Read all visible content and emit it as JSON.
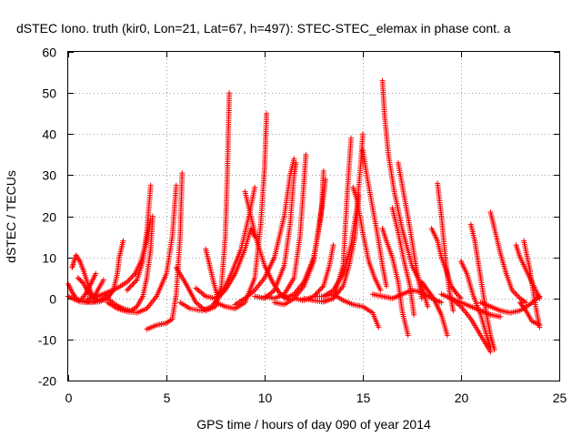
{
  "chart_data": {
    "type": "scatter",
    "title": "dSTEC Iono. truth (kir0, Lon=21, Lat=67, h=497): STEC-STEC_elemax in phase cont. a",
    "xlabel": "GPS time / hours of day 090 of year 2014",
    "ylabel": "dSTEC  / TECUs",
    "xlim": [
      0,
      25
    ],
    "ylim": [
      -20,
      60
    ],
    "xticks": [
      0,
      5,
      10,
      15,
      20,
      25
    ],
    "yticks": [
      -20,
      -10,
      0,
      10,
      20,
      30,
      40,
      50,
      60
    ],
    "grid": true,
    "marker": "plus",
    "color": "#ff0000",
    "series": [
      {
        "x": [
          0.0,
          0.2,
          0.4,
          0.6,
          0.8,
          1.0,
          1.2,
          1.4
        ],
        "y": [
          3.5,
          1.5,
          0.0,
          -0.5,
          0.5,
          2.0,
          4.0,
          6.0
        ]
      },
      {
        "x": [
          0.2,
          0.3,
          0.4,
          0.6,
          0.8,
          1.0,
          1.2,
          1.5
        ],
        "y": [
          7.5,
          9.0,
          10.5,
          9.0,
          6.5,
          3.5,
          1.0,
          -0.5
        ]
      },
      {
        "x": [
          0.0,
          0.3,
          0.6,
          0.9,
          1.2,
          1.5,
          1.8,
          2.0
        ],
        "y": [
          0.5,
          -0.2,
          -0.8,
          -1.0,
          -0.8,
          -0.5,
          0.0,
          1.0
        ]
      },
      {
        "x": [
          0.8,
          1.2,
          1.6,
          2.0,
          2.3,
          2.5,
          2.6,
          2.8
        ],
        "y": [
          -0.5,
          -1.0,
          -0.8,
          0.0,
          2.0,
          6.0,
          10.0,
          14.0
        ]
      },
      {
        "x": [
          0.5,
          0.8,
          1.0,
          1.3,
          1.5,
          1.8
        ],
        "y": [
          5.0,
          3.5,
          1.5,
          0.0,
          2.0,
          4.5
        ]
      },
      {
        "x": [
          1.0,
          1.5,
          2.0,
          2.5,
          3.0,
          3.4,
          3.7,
          4.0,
          4.2
        ],
        "y": [
          0.0,
          0.5,
          1.5,
          2.5,
          4.0,
          6.0,
          9.0,
          14.0,
          19.0
        ]
      },
      {
        "x": [
          2.0,
          2.4,
          2.8,
          3.2,
          3.5,
          3.8,
          4.0,
          4.2,
          4.3
        ],
        "y": [
          0.0,
          -1.5,
          -2.5,
          -3.0,
          -2.0,
          0.5,
          5.0,
          12.0,
          20.0
        ]
      },
      {
        "x": [
          2.0,
          2.5,
          3.0,
          3.5,
          4.0,
          4.5,
          5.0,
          5.3,
          5.5
        ],
        "y": [
          -1.0,
          -2.5,
          -3.2,
          -3.5,
          -2.5,
          0.5,
          6.0,
          15.0,
          27.5
        ]
      },
      {
        "x": [
          3.0,
          3.5,
          3.8,
          4.0,
          4.2
        ],
        "y": [
          2.0,
          4.5,
          9.0,
          16.0,
          27.5
        ]
      },
      {
        "x": [
          4.0,
          4.5,
          5.0,
          5.3,
          5.5,
          5.7,
          5.8
        ],
        "y": [
          -7.5,
          -6.5,
          -6.0,
          -5.0,
          1.0,
          15.0,
          30.5
        ]
      },
      {
        "x": [
          5.5,
          6.0,
          6.5,
          7.0,
          7.5,
          7.8,
          8.0,
          8.1,
          8.2
        ],
        "y": [
          7.5,
          3.5,
          -1.0,
          -3.0,
          -2.0,
          3.0,
          15.0,
          30.0,
          50.0
        ]
      },
      {
        "x": [
          5.7,
          6.2,
          6.8,
          7.3,
          7.8,
          8.3,
          8.8,
          9.2,
          9.5
        ],
        "y": [
          -1.0,
          -2.5,
          -3.0,
          -2.0,
          1.0,
          6.0,
          12.0,
          20.0,
          27.0
        ]
      },
      {
        "x": [
          6.5,
          7.0,
          7.5,
          8.0,
          8.5,
          9.0,
          9.3,
          9.5
        ],
        "y": [
          2.5,
          0.5,
          0.0,
          2.0,
          6.0,
          12.0,
          17.0,
          15.0
        ]
      },
      {
        "x": [
          7.0,
          7.2,
          7.4,
          7.6
        ],
        "y": [
          12.0,
          8.0,
          4.0,
          0.5
        ]
      },
      {
        "x": [
          7.5,
          8.0,
          8.5,
          9.0,
          9.5,
          9.8,
          10.0,
          10.1
        ],
        "y": [
          -1.0,
          -2.0,
          -2.5,
          -1.0,
          5.0,
          18.0,
          32.0,
          45.0
        ]
      },
      {
        "x": [
          8.5,
          9.0,
          9.5,
          10.0,
          10.5,
          11.0,
          11.3,
          11.5
        ],
        "y": [
          -1.5,
          0.0,
          2.0,
          5.0,
          10.0,
          20.0,
          30.0,
          34.0
        ]
      },
      {
        "x": [
          9.0,
          9.3,
          9.6,
          10.0,
          10.4,
          10.8,
          11.2
        ],
        "y": [
          26.0,
          20.0,
          14.0,
          8.0,
          4.0,
          1.0,
          0.0
        ]
      },
      {
        "x": [
          9.5,
          10.0,
          10.5,
          11.0,
          11.3,
          11.5,
          11.6
        ],
        "y": [
          0.5,
          0.0,
          2.0,
          8.0,
          18.0,
          30.0,
          33.0
        ]
      },
      {
        "x": [
          10.0,
          10.5,
          11.0,
          11.5,
          11.8,
          12.0,
          12.1
        ],
        "y": [
          0.5,
          0.0,
          1.0,
          5.0,
          15.0,
          28.0,
          35.0
        ]
      },
      {
        "x": [
          10.5,
          11.0,
          11.5,
          12.0,
          12.5,
          12.9,
          13.0
        ],
        "y": [
          -1.0,
          -1.5,
          0.0,
          3.0,
          9.0,
          22.0,
          31.0
        ]
      },
      {
        "x": [
          11.0,
          11.5,
          12.0,
          12.5,
          12.8,
          13.0,
          13.1
        ],
        "y": [
          0.0,
          1.0,
          4.0,
          10.0,
          18.0,
          25.0,
          29.0
        ]
      },
      {
        "x": [
          11.5,
          12.0,
          12.5,
          13.0,
          13.3,
          13.5
        ],
        "y": [
          0.0,
          -0.5,
          0.5,
          3.0,
          8.0,
          13.0
        ]
      },
      {
        "x": [
          12.0,
          12.5,
          13.0,
          13.5,
          14.0,
          14.3,
          14.6,
          14.8
        ],
        "y": [
          0.0,
          -0.5,
          -0.8,
          0.0,
          3.0,
          8.0,
          15.0,
          25.0
        ]
      },
      {
        "x": [
          12.5,
          13.0,
          13.5,
          14.0,
          14.4,
          14.7,
          14.9,
          15.0
        ],
        "y": [
          0.5,
          0.5,
          2.0,
          6.0,
          13.0,
          22.0,
          33.0,
          40.0
        ]
      },
      {
        "x": [
          12.5,
          13.0,
          13.5,
          14.0,
          14.2,
          14.4
        ],
        "y": [
          -0.5,
          -0.8,
          0.0,
          8.0,
          25.0,
          39.0
        ]
      },
      {
        "x": [
          12.5,
          13.0,
          13.5,
          14.0,
          14.5,
          15.0,
          15.5,
          15.8
        ],
        "y": [
          0.5,
          0.5,
          1.0,
          -0.5,
          -1.5,
          -2.0,
          -3.5,
          -7.0
        ]
      },
      {
        "x": [
          14.5,
          14.7,
          15.0,
          15.3,
          15.6,
          15.9
        ],
        "y": [
          27.0,
          24.0,
          16.0,
          9.0,
          5.0,
          2.0
        ]
      },
      {
        "x": [
          15.0,
          15.2,
          15.5,
          15.8,
          16.0,
          16.2
        ],
        "y": [
          36.0,
          30.0,
          22.0,
          14.0,
          8.0,
          3.0
        ]
      },
      {
        "x": [
          16.0,
          16.1,
          16.3,
          16.6,
          17.0,
          17.5,
          18.0,
          18.3
        ],
        "y": [
          53.0,
          45.0,
          35.0,
          26.0,
          17.0,
          8.0,
          3.0,
          -2.0
        ]
      },
      {
        "x": [
          16.0,
          16.2,
          16.5,
          16.8,
          17.0,
          17.3
        ],
        "y": [
          17.0,
          14.0,
          10.0,
          4.0,
          -3.0,
          -9.0
        ]
      },
      {
        "x": [
          16.5,
          16.8,
          17.1,
          17.4,
          17.6
        ],
        "y": [
          22.0,
          16.0,
          9.0,
          3.0,
          -4.0
        ]
      },
      {
        "x": [
          16.8,
          17.1,
          17.4,
          17.7,
          18.0
        ],
        "y": [
          33.0,
          25.0,
          17.0,
          8.0,
          0.0
        ]
      },
      {
        "x": [
          15.5,
          16.0,
          16.5,
          17.0,
          17.5,
          18.0,
          18.5,
          19.0
        ],
        "y": [
          1.0,
          0.5,
          0.0,
          1.0,
          2.0,
          1.5,
          0.0,
          -1.0
        ]
      },
      {
        "x": [
          18.5,
          18.8,
          19.0,
          19.3,
          19.5,
          19.8,
          20.0
        ],
        "y": [
          17.0,
          14.0,
          10.0,
          6.0,
          3.0,
          1.0,
          0.0
        ]
      },
      {
        "x": [
          18.0,
          18.3,
          18.6,
          19.0,
          19.3
        ],
        "y": [
          4.0,
          2.0,
          0.0,
          -4.0,
          -9.0
        ]
      },
      {
        "x": [
          18.8,
          19.0,
          19.2,
          19.4,
          19.6
        ],
        "y": [
          28.0,
          20.0,
          10.0,
          2.0,
          -3.0
        ]
      },
      {
        "x": [
          19.0,
          19.5,
          20.0,
          20.5,
          21.0,
          21.5
        ],
        "y": [
          1.0,
          0.0,
          -2.0,
          -5.0,
          -9.0,
          -13.0
        ]
      },
      {
        "x": [
          19.5,
          20.0,
          20.5,
          21.0,
          21.5,
          22.0
        ],
        "y": [
          0.0,
          -1.0,
          -2.0,
          -3.0,
          -4.0,
          -4.5
        ]
      },
      {
        "x": [
          20.0,
          20.3,
          20.6,
          21.0,
          21.3,
          21.5
        ],
        "y": [
          9.0,
          6.0,
          1.0,
          -4.0,
          -9.0,
          -12.0
        ]
      },
      {
        "x": [
          20.5,
          20.7,
          20.9,
          21.1,
          21.3,
          21.5,
          21.7
        ],
        "y": [
          18.0,
          14.0,
          8.0,
          2.0,
          -4.0,
          -9.0,
          -12.5
        ]
      },
      {
        "x": [
          21.5,
          21.7,
          22.0,
          22.3,
          22.6,
          23.0,
          23.3
        ],
        "y": [
          21.0,
          17.0,
          11.0,
          6.0,
          2.0,
          0.0,
          -1.0
        ]
      },
      {
        "x": [
          21.0,
          21.5,
          22.0,
          22.5,
          23.0,
          23.5,
          24.0
        ],
        "y": [
          -1.0,
          -2.0,
          -3.0,
          -3.5,
          -3.0,
          -1.5,
          0.5
        ]
      },
      {
        "x": [
          22.8,
          23.0,
          23.3,
          23.6,
          23.9,
          24.0
        ],
        "y": [
          13.0,
          10.0,
          7.0,
          4.0,
          1.0,
          0.0
        ]
      },
      {
        "x": [
          23.2,
          23.5,
          23.8,
          24.0
        ],
        "y": [
          14.0,
          7.0,
          -2.0,
          -7.0
        ]
      },
      {
        "x": [
          23.0,
          23.3,
          23.6,
          24.0
        ],
        "y": [
          -1.0,
          -3.0,
          -5.5,
          -6.5
        ]
      }
    ]
  }
}
